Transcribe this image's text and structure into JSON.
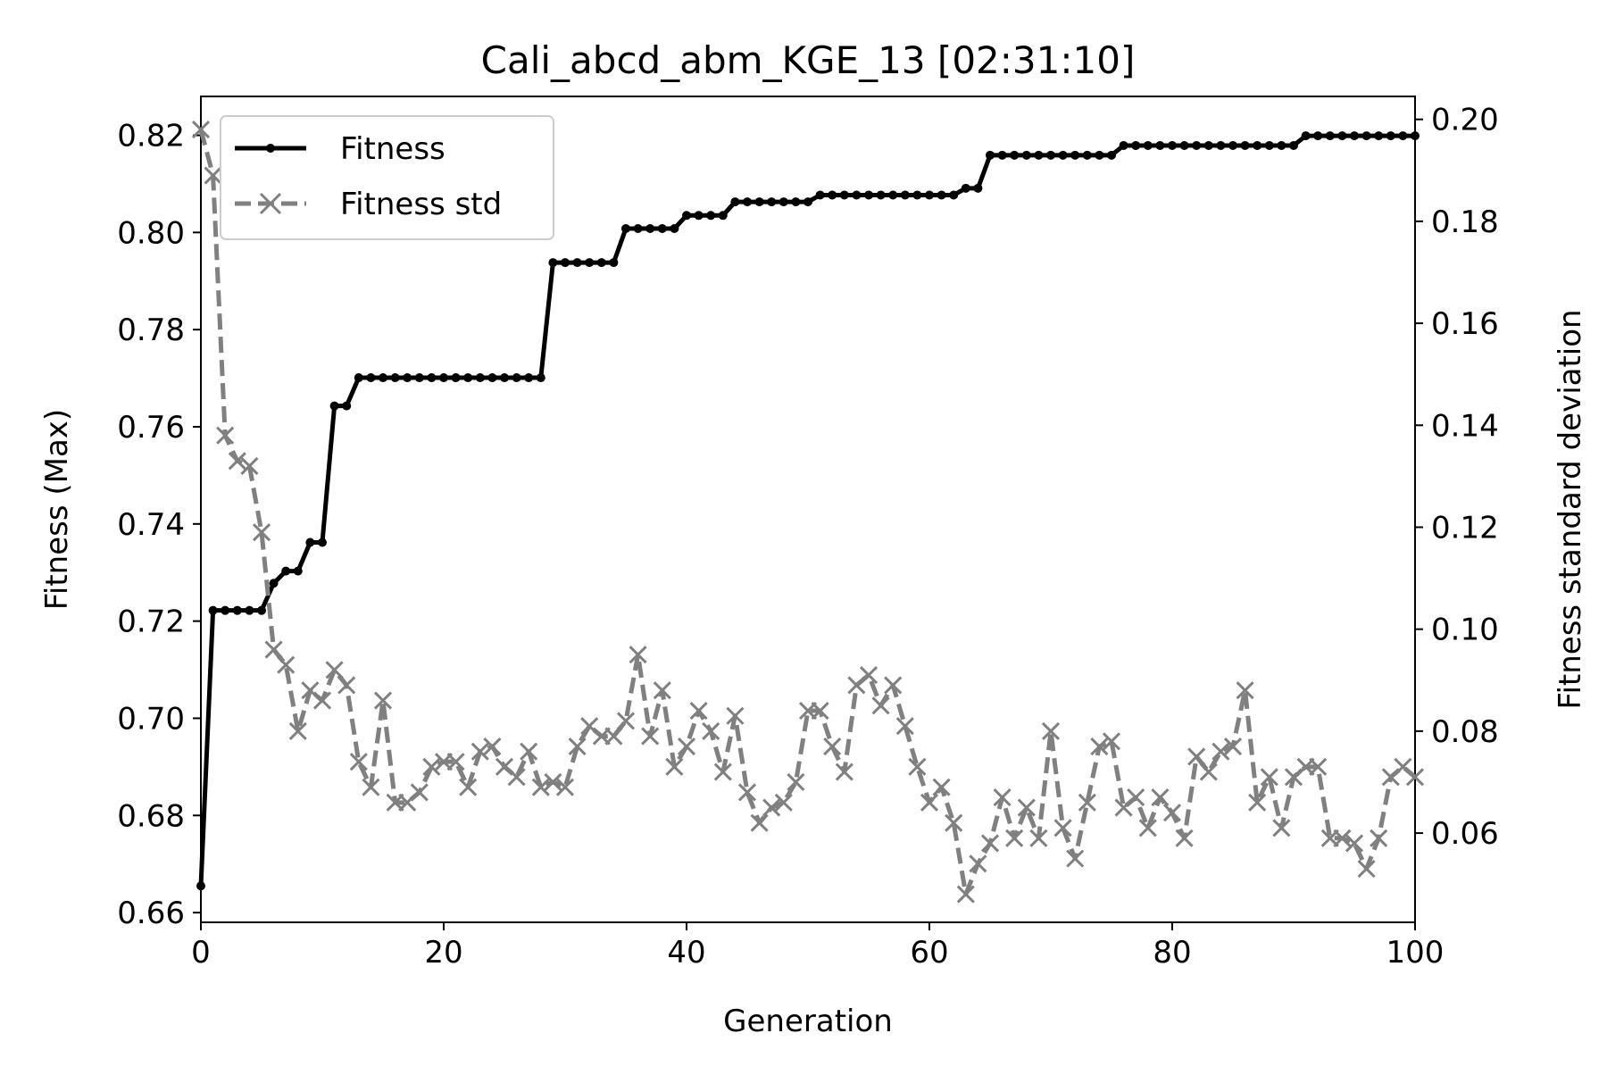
{
  "chart_data": {
    "type": "line",
    "title": "Cali_abcd_abm_KGE_13  [02:31:10]",
    "xlabel": "Generation",
    "ylabel": "Fitness (Max)",
    "y2label": "Fitness standard deviation",
    "xlim": [
      0,
      100
    ],
    "ylim": [
      0.658,
      0.828
    ],
    "y2lim": [
      0.0425,
      0.2045
    ],
    "xticks": [
      0,
      20,
      40,
      60,
      80,
      100
    ],
    "xtick_labels": [
      "0",
      "20",
      "40",
      "60",
      "80",
      "100"
    ],
    "yticks": [
      0.66,
      0.68,
      0.7,
      0.72,
      0.74,
      0.76,
      0.78,
      0.8,
      0.82
    ],
    "ytick_labels": [
      "0.66",
      "0.68",
      "0.70",
      "0.72",
      "0.74",
      "0.76",
      "0.78",
      "0.80",
      "0.82"
    ],
    "y2ticks": [
      0.06,
      0.08,
      0.1,
      0.12,
      0.14,
      0.16,
      0.18,
      0.2
    ],
    "y2tick_labels": [
      "0.06",
      "0.08",
      "0.10",
      "0.12",
      "0.14",
      "0.16",
      "0.18",
      "0.20"
    ],
    "grid": false,
    "legend_position": "top-left",
    "series": [
      {
        "name": "Fitness",
        "axis": "left",
        "color": "#000000",
        "style": "solid",
        "marker": "dot",
        "x": [
          0,
          1,
          2,
          3,
          4,
          5,
          6,
          7,
          8,
          9,
          10,
          11,
          12,
          13,
          14,
          15,
          16,
          17,
          18,
          19,
          20,
          21,
          22,
          23,
          24,
          25,
          26,
          27,
          28,
          29,
          30,
          31,
          32,
          33,
          34,
          35,
          36,
          37,
          38,
          39,
          40,
          41,
          42,
          43,
          44,
          45,
          46,
          47,
          48,
          49,
          50,
          51,
          52,
          53,
          54,
          55,
          56,
          57,
          58,
          59,
          60,
          61,
          62,
          63,
          64,
          65,
          66,
          67,
          68,
          69,
          70,
          71,
          72,
          73,
          74,
          75,
          76,
          77,
          78,
          79,
          80,
          81,
          82,
          83,
          84,
          85,
          86,
          87,
          88,
          89,
          90,
          91,
          92,
          93,
          94,
          95,
          96,
          97,
          98,
          99,
          100
        ],
        "values": [
          0.6655,
          0.7222,
          0.7222,
          0.7222,
          0.7222,
          0.7222,
          0.7278,
          0.7303,
          0.7303,
          0.7362,
          0.7362,
          0.7643,
          0.7643,
          0.7701,
          0.7701,
          0.7701,
          0.7701,
          0.7701,
          0.7701,
          0.7701,
          0.7701,
          0.7701,
          0.7701,
          0.7701,
          0.7701,
          0.7701,
          0.7701,
          0.7701,
          0.7701,
          0.7938,
          0.7938,
          0.7938,
          0.7938,
          0.7938,
          0.7938,
          0.8008,
          0.8008,
          0.8008,
          0.8008,
          0.8008,
          0.8035,
          0.8035,
          0.8035,
          0.8035,
          0.8063,
          0.8063,
          0.8063,
          0.8063,
          0.8063,
          0.8063,
          0.8063,
          0.8077,
          0.8077,
          0.8077,
          0.8077,
          0.8077,
          0.8077,
          0.8077,
          0.8077,
          0.8077,
          0.8077,
          0.8077,
          0.8077,
          0.8091,
          0.8091,
          0.8159,
          0.8159,
          0.8159,
          0.8159,
          0.8159,
          0.8159,
          0.8159,
          0.8159,
          0.8159,
          0.8159,
          0.8159,
          0.8179,
          0.8179,
          0.8179,
          0.8179,
          0.8179,
          0.8179,
          0.8179,
          0.8179,
          0.8179,
          0.8179,
          0.8179,
          0.8179,
          0.8179,
          0.8179,
          0.8179,
          0.8199,
          0.8199,
          0.8199,
          0.8199,
          0.8199,
          0.8199,
          0.8199,
          0.8199,
          0.8199,
          0.8199
        ]
      },
      {
        "name": "Fitness std",
        "axis": "right",
        "color": "#808080",
        "style": "dashed",
        "marker": "x",
        "x": [
          0,
          1,
          2,
          3,
          4,
          5,
          6,
          7,
          8,
          9,
          10,
          11,
          12,
          13,
          14,
          15,
          16,
          17,
          18,
          19,
          20,
          21,
          22,
          23,
          24,
          25,
          26,
          27,
          28,
          29,
          30,
          31,
          32,
          33,
          34,
          35,
          36,
          37,
          38,
          39,
          40,
          41,
          42,
          43,
          44,
          45,
          46,
          47,
          48,
          49,
          50,
          51,
          52,
          53,
          54,
          55,
          56,
          57,
          58,
          59,
          60,
          61,
          62,
          63,
          64,
          65,
          66,
          67,
          68,
          69,
          70,
          71,
          72,
          73,
          74,
          75,
          76,
          77,
          78,
          79,
          80,
          81,
          82,
          83,
          84,
          85,
          86,
          87,
          88,
          89,
          90,
          91,
          92,
          93,
          94,
          95,
          96,
          97,
          98,
          99,
          100
        ],
        "values": [
          0.198,
          0.189,
          0.138,
          0.133,
          0.132,
          0.119,
          0.096,
          0.093,
          0.08,
          0.088,
          0.086,
          0.092,
          0.089,
          0.074,
          0.069,
          0.086,
          0.066,
          0.066,
          0.068,
          0.073,
          0.074,
          0.074,
          0.069,
          0.076,
          0.077,
          0.073,
          0.071,
          0.076,
          0.069,
          0.07,
          0.069,
          0.077,
          0.081,
          0.079,
          0.079,
          0.082,
          0.095,
          0.079,
          0.088,
          0.073,
          0.077,
          0.084,
          0.08,
          0.072,
          0.083,
          0.068,
          0.062,
          0.065,
          0.066,
          0.07,
          0.084,
          0.084,
          0.077,
          0.072,
          0.089,
          0.091,
          0.085,
          0.089,
          0.081,
          0.073,
          0.066,
          0.069,
          0.062,
          0.048,
          0.054,
          0.058,
          0.067,
          0.059,
          0.065,
          0.059,
          0.08,
          0.061,
          0.055,
          0.066,
          0.077,
          0.078,
          0.065,
          0.067,
          0.061,
          0.067,
          0.064,
          0.059,
          0.075,
          0.072,
          0.076,
          0.077,
          0.088,
          0.066,
          0.071,
          0.061,
          0.071,
          0.073,
          0.073,
          0.059,
          0.059,
          0.058,
          0.053,
          0.059,
          0.071,
          0.073,
          0.071
        ]
      }
    ]
  }
}
